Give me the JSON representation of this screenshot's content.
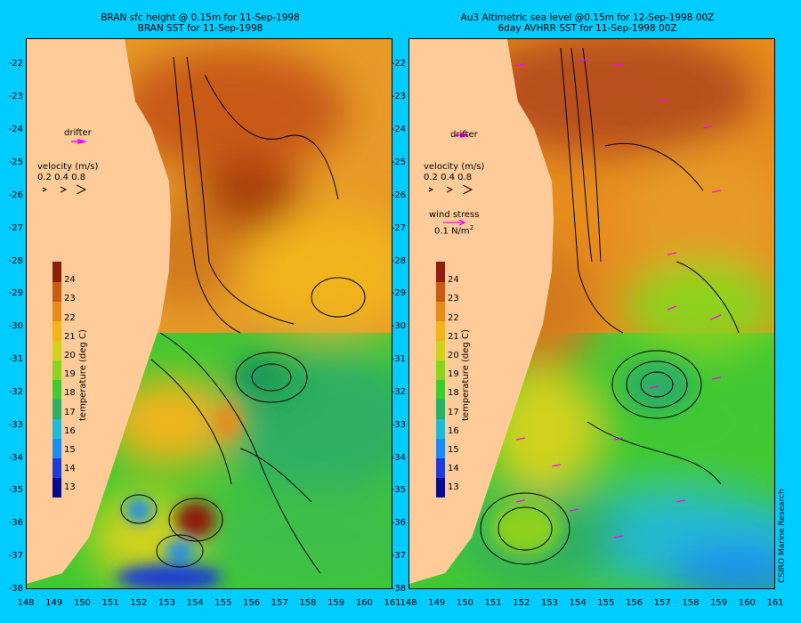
{
  "left_panel": {
    "title_line1": "BRAN sfc height @ 0.15m for 11-Sep-1998",
    "title_line2": "BRAN SST for 11-Sep-1998",
    "drifter_label": "drifter",
    "velocity_label": "velocity (m/s)",
    "velocity_values": "0.2 0.4 0.8"
  },
  "right_panel": {
    "title_line1": "Au3 Altimetric sea level  @0.15m  for 12-Sep-1998 00Z",
    "title_line2": "6day AVHRR SST for 11-Sep-1998 00Z",
    "drifter_label": "drifter",
    "velocity_label": "velocity (m/s)",
    "velocity_values": "0.2 0.4 0.8",
    "wind_label": "wind stress",
    "wind_value": "0.1 N/m",
    "wind_exp": "2"
  },
  "colorbar": {
    "title": "temperature (deg C)",
    "ticks": [
      "24",
      "23",
      "22",
      "21",
      "20",
      "19",
      "18",
      "17",
      "16",
      "15",
      "14",
      "13"
    ],
    "min": 12.5,
    "max": 25,
    "colors": [
      "#0a0a8c",
      "#1e3cd2",
      "#1e8cf0",
      "#23b9d2",
      "#2daf64",
      "#41c832",
      "#8cd21e",
      "#d2d21e",
      "#f0b41e",
      "#e68c1e",
      "#c85a14",
      "#8c1e0a"
    ]
  },
  "axes": {
    "y_ticks": [
      "-22",
      "-23",
      "-24",
      "-25",
      "-26",
      "-27",
      "-28",
      "-29",
      "-30",
      "-31",
      "-32",
      "-33",
      "-34",
      "-35",
      "-36",
      "-37",
      "-38"
    ],
    "x_ticks": [
      "148",
      "149",
      "150",
      "151",
      "152",
      "153",
      "154",
      "155",
      "156",
      "157",
      "158",
      "159",
      "160",
      "161"
    ],
    "lon_range": [
      148,
      161
    ],
    "lat_range": [
      -21.2,
      -38
    ]
  },
  "credit": "CSIRO Marine Research",
  "colors": {
    "background": "#00ccff",
    "land": "#ffcc99",
    "drifter_arrow": "#ff00ff",
    "contour": "#000000"
  }
}
